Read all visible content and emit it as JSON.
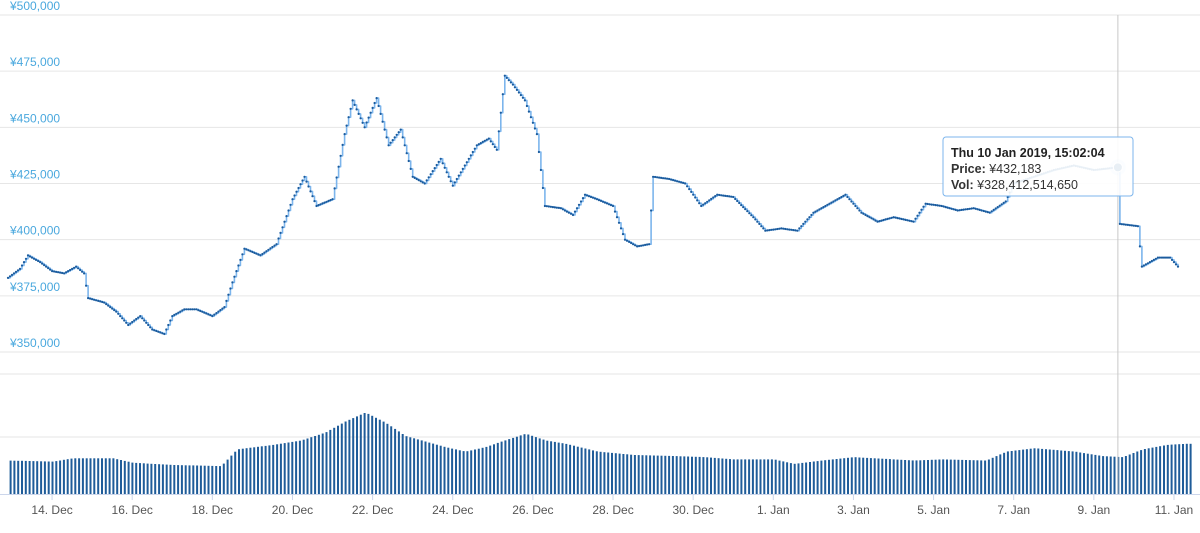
{
  "chart_data": {
    "type": "line",
    "price_axis": {
      "ylim": [
        350000,
        500000
      ],
      "ticks": [
        350000,
        375000,
        400000,
        425000,
        450000,
        475000,
        500000
      ],
      "tick_labels": [
        "¥350,000",
        "¥375,000",
        "¥400,000",
        "¥425,000",
        "¥450,000",
        "¥475,000",
        "¥500,000"
      ]
    },
    "x_axis": {
      "tick_labels": [
        "14. Dec",
        "16. Dec",
        "18. Dec",
        "20. Dec",
        "22. Dec",
        "24. Dec",
        "26. Dec",
        "28. Dec",
        "30. Dec",
        "1. Jan",
        "3. Jan",
        "5. Jan",
        "7. Jan",
        "9. Jan",
        "11. Jan"
      ],
      "tick_days": [
        1,
        3,
        5,
        7,
        9,
        11,
        13,
        15,
        17,
        19,
        21,
        23,
        25,
        27,
        29
      ],
      "range_days": [
        -0.1,
        29.4
      ]
    },
    "price_series": {
      "points": [
        [
          -0.1,
          383000
        ],
        [
          0.2,
          387000
        ],
        [
          0.4,
          393000
        ],
        [
          0.7,
          390000
        ],
        [
          1.0,
          386000
        ],
        [
          1.3,
          385000
        ],
        [
          1.6,
          388000
        ],
        [
          1.8,
          385000
        ],
        [
          1.9,
          374000
        ],
        [
          2.3,
          372000
        ],
        [
          2.6,
          368000
        ],
        [
          2.9,
          362000
        ],
        [
          3.2,
          366000
        ],
        [
          3.5,
          360000
        ],
        [
          3.8,
          358000
        ],
        [
          4.0,
          366000
        ],
        [
          4.3,
          369000
        ],
        [
          4.6,
          369000
        ],
        [
          5.0,
          366000
        ],
        [
          5.3,
          370000
        ],
        [
          5.5,
          381000
        ],
        [
          5.8,
          396000
        ],
        [
          6.2,
          393000
        ],
        [
          6.6,
          398000
        ],
        [
          7.0,
          418000
        ],
        [
          7.3,
          428000
        ],
        [
          7.6,
          415000
        ],
        [
          8.0,
          418000
        ],
        [
          8.3,
          447000
        ],
        [
          8.5,
          462000
        ],
        [
          8.8,
          450000
        ],
        [
          9.1,
          463000
        ],
        [
          9.4,
          442000
        ],
        [
          9.7,
          449000
        ],
        [
          10.0,
          428000
        ],
        [
          10.3,
          425000
        ],
        [
          10.7,
          436000
        ],
        [
          11.0,
          424000
        ],
        [
          11.3,
          433000
        ],
        [
          11.6,
          442000
        ],
        [
          11.9,
          445000
        ],
        [
          12.1,
          440000
        ],
        [
          12.3,
          473000
        ],
        [
          12.5,
          469000
        ],
        [
          12.8,
          462000
        ],
        [
          13.1,
          447000
        ],
        [
          13.3,
          415000
        ],
        [
          13.7,
          414000
        ],
        [
          14.0,
          411000
        ],
        [
          14.3,
          420000
        ],
        [
          14.6,
          418000
        ],
        [
          15.0,
          415000
        ],
        [
          15.3,
          400000
        ],
        [
          15.6,
          397000
        ],
        [
          15.9,
          398000
        ],
        [
          16.0,
          428000
        ],
        [
          16.4,
          427000
        ],
        [
          16.8,
          425000
        ],
        [
          17.2,
          415000
        ],
        [
          17.6,
          420000
        ],
        [
          18.0,
          419000
        ],
        [
          18.5,
          410000
        ],
        [
          18.8,
          404000
        ],
        [
          19.2,
          405000
        ],
        [
          19.6,
          404000
        ],
        [
          20.0,
          412000
        ],
        [
          20.4,
          416000
        ],
        [
          20.8,
          420000
        ],
        [
          21.2,
          412000
        ],
        [
          21.6,
          408000
        ],
        [
          22.0,
          410000
        ],
        [
          22.5,
          408000
        ],
        [
          22.8,
          416000
        ],
        [
          23.2,
          415000
        ],
        [
          23.6,
          413000
        ],
        [
          24.0,
          414000
        ],
        [
          24.4,
          412000
        ],
        [
          24.8,
          417000
        ],
        [
          25.0,
          425000
        ],
        [
          25.5,
          428000
        ],
        [
          26.0,
          431000
        ],
        [
          26.5,
          433000
        ],
        [
          27.0,
          431000
        ],
        [
          27.6,
          432183
        ],
        [
          27.65,
          407000
        ],
        [
          28.1,
          406000
        ],
        [
          28.2,
          388000
        ],
        [
          28.6,
          392000
        ],
        [
          28.9,
          392000
        ],
        [
          29.1,
          388000
        ]
      ]
    },
    "volume_series": {
      "points": [
        [
          -0.1,
          0.3
        ],
        [
          1.0,
          0.29
        ],
        [
          1.5,
          0.32
        ],
        [
          2.5,
          0.32
        ],
        [
          3.0,
          0.28
        ],
        [
          4.0,
          0.26
        ],
        [
          5.2,
          0.25
        ],
        [
          5.6,
          0.4
        ],
        [
          6.5,
          0.44
        ],
        [
          7.2,
          0.48
        ],
        [
          7.8,
          0.55
        ],
        [
          8.3,
          0.65
        ],
        [
          8.8,
          0.73
        ],
        [
          9.3,
          0.64
        ],
        [
          9.8,
          0.52
        ],
        [
          10.8,
          0.42
        ],
        [
          11.3,
          0.38
        ],
        [
          11.8,
          0.42
        ],
        [
          12.2,
          0.47
        ],
        [
          12.8,
          0.54
        ],
        [
          13.3,
          0.48
        ],
        [
          13.8,
          0.45
        ],
        [
          14.6,
          0.38
        ],
        [
          15.5,
          0.35
        ],
        [
          16.5,
          0.34
        ],
        [
          17.3,
          0.33
        ],
        [
          18.0,
          0.31
        ],
        [
          19.0,
          0.31
        ],
        [
          19.5,
          0.27
        ],
        [
          20.2,
          0.3
        ],
        [
          21.0,
          0.33
        ],
        [
          22.5,
          0.3
        ],
        [
          23.2,
          0.31
        ],
        [
          24.3,
          0.3
        ],
        [
          24.8,
          0.38
        ],
        [
          25.5,
          0.41
        ],
        [
          26.5,
          0.38
        ],
        [
          27.2,
          0.34
        ],
        [
          27.7,
          0.33
        ],
        [
          28.2,
          0.4
        ],
        [
          28.8,
          0.44
        ],
        [
          29.3,
          0.45
        ]
      ]
    },
    "tooltip": {
      "title": "Thu 10 Jan 2019, 15:02:04",
      "price_label": "Price:",
      "price_value": "¥432,183",
      "vol_label": "Vol:",
      "vol_value": "¥328,412,514,650",
      "day": 27.6,
      "price": 432183
    },
    "colors": {
      "line": "#7cb5ec",
      "marker": "#1a5a9c",
      "volume": "#1f5c99",
      "tooltip_border": "#7cb5ec",
      "axis_label": "#4aa8de"
    },
    "grid": true,
    "legend": "none"
  }
}
